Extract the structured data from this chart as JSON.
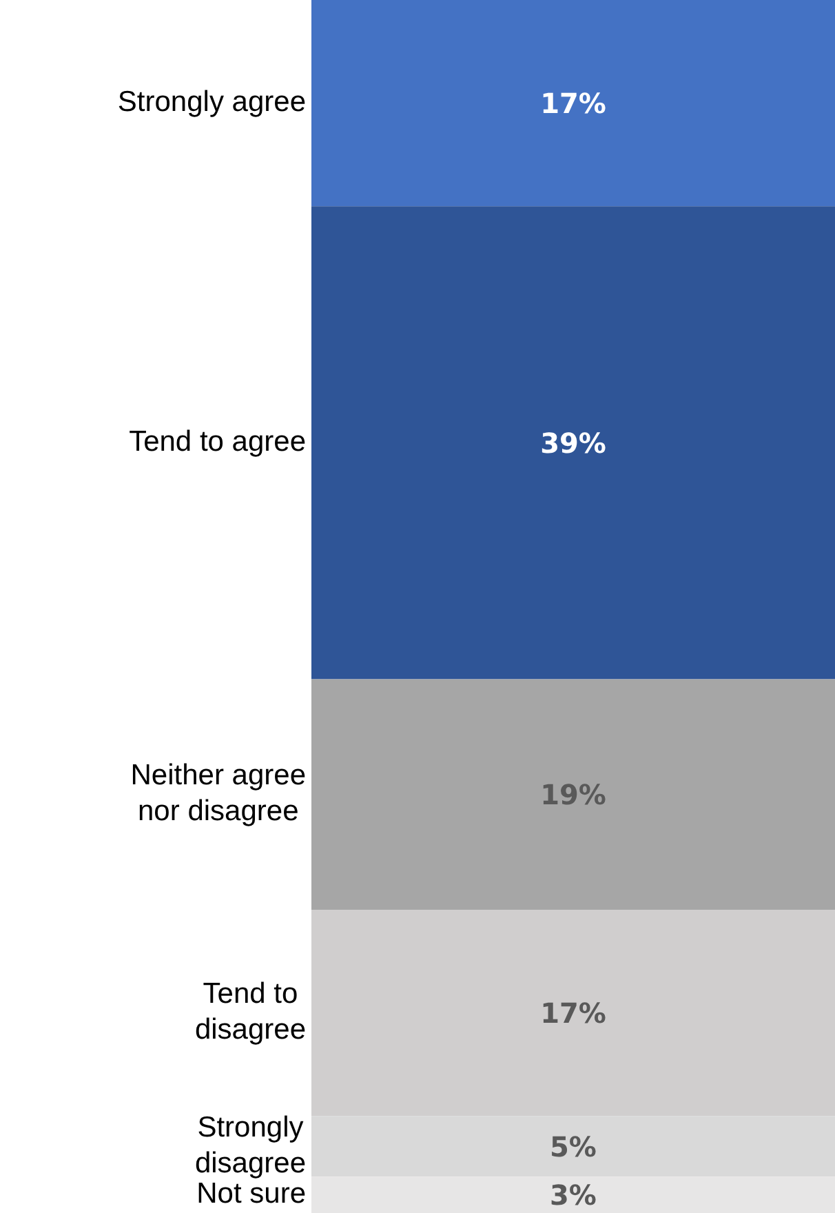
{
  "chart_data": {
    "type": "bar",
    "stacked": true,
    "ylim": [
      0,
      100
    ],
    "categories": [
      null
    ],
    "series": [
      {
        "name": "Not sure",
        "color": "#e7e6e6",
        "values": [
          3
        ],
        "value_labels": [
          "3%"
        ]
      },
      {
        "name": "Strongly disagree",
        "color": "#d9d9d9",
        "values": [
          5
        ],
        "value_labels": [
          "5%"
        ]
      },
      {
        "name": "Tend to disagree",
        "color": "#d0cece",
        "values": [
          17
        ],
        "value_labels": [
          "17%"
        ]
      },
      {
        "name": "Neither agree nor disagree",
        "color": "#a6a6a6",
        "values": [
          19
        ],
        "value_labels": [
          "19%"
        ]
      },
      {
        "name": "Tend to agree",
        "color": "#2f5597",
        "values": [
          39
        ],
        "value_labels": [
          "39%"
        ]
      },
      {
        "name": "Strongly agree",
        "color": "#4472c4",
        "values": [
          17
        ],
        "value_labels": [
          "17%"
        ]
      }
    ]
  }
}
